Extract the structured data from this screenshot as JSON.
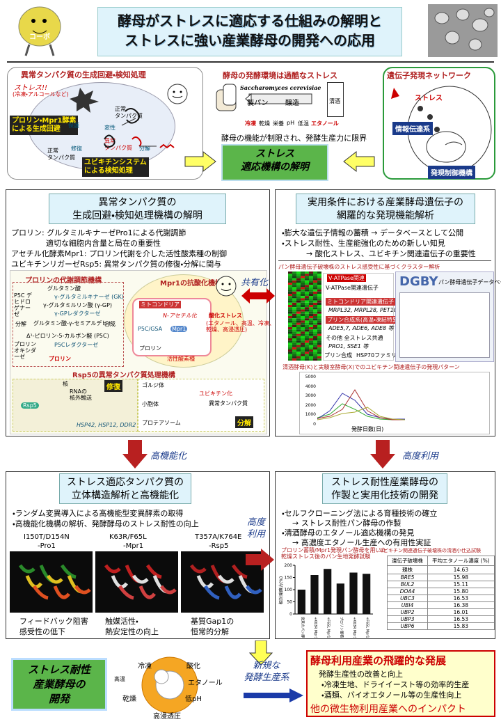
{
  "header": {
    "title_lines": [
      "酵母がストレスに適応する仕組みの解明と",
      "ストレスに強い産業酵母の開発への応用"
    ],
    "mascot": "コーボ"
  },
  "stress_panel": {
    "title": "異常タンパク質の生成回避・検知処理",
    "stress": "ストレス!!",
    "stress_note": "(冷凍・アルコールなど)",
    "avoid": [
      "プロリン・Mpr1酵素",
      "による生成回避"
    ],
    "normal": [
      "正常",
      "タンパク質"
    ],
    "protect": "保護",
    "denature": "変性",
    "repair": "修復",
    "abnormal": [
      "異常",
      "タンパク質"
    ],
    "degrade": "分解",
    "normal2": [
      "正常",
      "タンパク質"
    ],
    "detect": [
      "ユビキチンシステム",
      "による検知処理"
    ]
  },
  "environment": {
    "title": "酵母の発酵環境は過酷なストレス",
    "species": "Saccharomyces cerevisiae",
    "bread": "製パン",
    "brewing": "醸造",
    "sake": "清酒",
    "stresses": [
      "冷凍",
      "乾燥",
      "栄養",
      "pH",
      "低温",
      "エタノール"
    ],
    "limit": "酵母の機能が制限され、発酵生産力に限界",
    "goal": [
      "ストレス",
      "適応機構の解明"
    ]
  },
  "network": {
    "title": "遺伝子発現ネットワーク",
    "stress": "ストレス",
    "signal": "情報伝達系",
    "control": "発現制御機構"
  },
  "mechanism": {
    "title": [
      "異常タンパク質の",
      "生成回避・検知処理機構の解明"
    ],
    "lines": [
      "プロリン: グルタミルキナーゼPro1による代謝調節",
      "適切な細胞内含量と局在の重要性",
      "アセチル化酵素Mpr1: プロリン代謝を介した活性酸素種の制御",
      "ユビキチンリガーゼRsp5: 異常タンパク質の修復・分解に関与"
    ],
    "proline": {
      "title": "プロリンの代謝調節機構",
      "steps": [
        "グルタミン酸",
        "γ-グルタミルキナーゼ (GK)",
        "γ-グルタミルリン酸 (γ-GP)",
        "γ-GPレダクターゼ",
        "グルタミン酸-γ-セミアルデヒド",
        "Δ¹-ピロリン-5-カルボン酸 (P5C)",
        "P5Cレダクターゼ",
        "プロリン"
      ],
      "side": [
        "P5C デヒドロゲナーゼ",
        "プロリン オキシダーゼ",
        "分解",
        "合成"
      ]
    },
    "mpr1": {
      "title": "Mpr1の抗酸化機構",
      "mito": "ミトコンドリア",
      "acetyl": "N-アセチル化",
      "p5c": "P5C/GSA",
      "proline": "プロリン",
      "oxstress": "酸化ストレス",
      "ox_note": [
        "(エタノール、高温、冷凍、",
        "乾燥、高浸透圧)"
      ],
      "ros": "活性酸素種",
      "enzyme": "Mpr1"
    },
    "rsp5": {
      "title": "Rsp5の異常タンパク質処理機構",
      "repair": "修復",
      "degrade": "分解",
      "nucleus": "核",
      "rna": [
        "RNAの",
        "核外輸送"
      ],
      "golgi": "ゴルジ体",
      "er": "小胞体",
      "ubiquitin": "ユビキチン化",
      "abnormal": "異常タンパク質",
      "proteasome": "プロテアソーム",
      "genes": "HSP42, HSP12, DDR2",
      "enzyme": "Rsp5"
    }
  },
  "sharing": "共有化",
  "expression": {
    "title": [
      "実用条件における産業酵母遺伝子の",
      "網羅的な発現機能解析"
    ],
    "lines": [
      "・膨大な遺伝子情報の蓄積 → データベースとして公開",
      "・ストレス耐性、生産能強化のための新しい知見",
      "→ 酸化ストレス、ユビキチン関連遺伝子の重要性"
    ],
    "cluster_title": "パン酵母遺伝子破壊株のストレス感受性に基づくクラスター解析",
    "clusters": [
      "V-ATPase関連",
      "V-ATPase関連遺伝子",
      "ミトコンドリア関連遺伝子",
      "MRPL32, MRPL28, PET100 等",
      "プリン合成系(高温・凍結特異的)",
      "ADE5,7, ADE6, ADE8 等",
      "その他 全ストレス共通",
      "PRO1, SSE1 等",
      "プリン合成",
      "HSP70ファミリー"
    ],
    "dgby": "DGBY",
    "dgby_sub": "パン酵母遺伝子データベース",
    "pattern_title": "清酒酵母(K)と実験室酵母(X)でのユビキチン関連遺伝子の発現パターン",
    "pattern_yticks": [
      "5000",
      "4000",
      "3000",
      "2000",
      "1000",
      "0"
    ],
    "pattern_xlabel": "発酵日数(日)"
  },
  "arrows": {
    "left": "高機能化",
    "right": "高度利用",
    "middle": [
      "高度",
      "利用"
    ],
    "bottom": [
      "新規な",
      "発酵生産系"
    ]
  },
  "structure": {
    "title": [
      "ストレス適応タンパク質の",
      "立体構造解析と高機能化"
    ],
    "lines": [
      "・ランダム変異導入による高機能型変異酵素の取得",
      "・高機能化機構の解析、発酵酵母のストレス耐性の向上"
    ],
    "mutants": [
      {
        "name": "I150T/D154N",
        "protein": "-Pro1",
        "caption": [
          "フィードバック阻害",
          "感受性の低下"
        ]
      },
      {
        "name": "K63R/F65L",
        "protein": "-Mpr1",
        "caption": [
          "触媒活性・",
          "熱安定性の向上"
        ]
      },
      {
        "name": "T357A/K764E",
        "protein": "-Rsp5",
        "caption": [
          "基質Gap1の",
          "恒常的分解"
        ]
      }
    ]
  },
  "industrial": {
    "title": [
      "ストレス耐性産業酵母の",
      "作製と実用化技術の開発"
    ],
    "lines": [
      "・セルフクローニング法による育種技術の確立",
      "→ ストレス耐性パン酵母の作製",
      "・清酒酵母のエタノール適応機構の発見",
      "→ 高濃度エタノール生産への有用性実証"
    ],
    "bar_chart": {
      "title": [
        "プロリン蓄積/Mpr1発現パン酵母を用いた",
        "乾燥ストレス後のパン生地発酵試験"
      ],
      "ylabel": "相対発酵力(%)",
      "categories": [
        "従来のパン酵母",
        "+K63R Mpr1",
        "+F65L Mpr1",
        "プロリン蓄積パン酵母",
        "+K63R Mpr1",
        "+F65L Mpr1"
      ],
      "values": [
        100,
        160,
        185,
        125,
        170,
        165
      ],
      "ylim": [
        0,
        200
      ],
      "yticks": [
        0,
        50,
        100,
        150,
        200
      ],
      "color": "#111111"
    },
    "table": {
      "title": "ユビキチン関連遺伝子破壊株の清酒小仕込試験",
      "header": [
        "遺伝子破壊株",
        "平均エタノール濃度 (%)"
      ],
      "rows": [
        [
          "親株",
          "14.63"
        ],
        [
          "BRE5",
          "15.98"
        ],
        [
          "BUL2",
          "15.11"
        ],
        [
          "DOA4",
          "15.80"
        ],
        [
          "UBC3",
          "16.53"
        ],
        [
          "UBI4",
          "16.38"
        ],
        [
          "UBP2",
          "16.01"
        ],
        [
          "UBP3",
          "16.53"
        ],
        [
          "UBP6",
          "15.83"
        ]
      ]
    }
  },
  "outcome": {
    "left": [
      "ストレス耐性",
      "産業酵母の",
      "開発"
    ],
    "wheel": [
      "冷凍",
      "酸化",
      "高温",
      "エタノール",
      "乾燥",
      "低pH",
      "高浸透圧"
    ],
    "title": "酵母利用産業の飛躍的な発展",
    "lines": [
      "発酵生産性の改善と向上",
      "・冷凍生地、ドライイースト等の効率的生産",
      "・酒類、バイオエタノール等の生産性向上"
    ],
    "impact": "他の微生物利用産業へのインパクト"
  }
}
